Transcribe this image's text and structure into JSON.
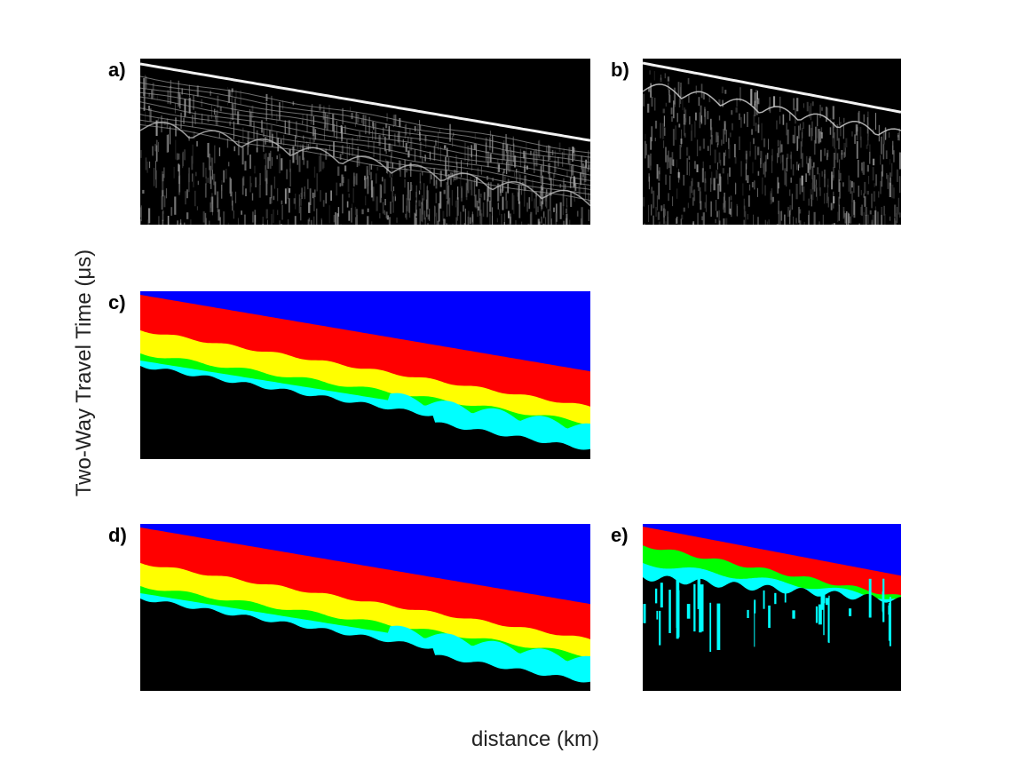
{
  "chart_data": {
    "type": "heatmap",
    "xlabel": "distance (km)",
    "ylabel": "Two-Way Travel Time (μs)",
    "panels": [
      {
        "label": "a)",
        "kind": "radargram",
        "description": "raw radar echo (grayscale)"
      },
      {
        "label": "b)",
        "kind": "radargram",
        "description": "raw radar echo (grayscale)"
      },
      {
        "label": "c)",
        "kind": "segmentation",
        "classes": [
          "blue",
          "red",
          "yellow",
          "green",
          "cyan",
          "black"
        ]
      },
      {
        "label": "d)",
        "kind": "segmentation",
        "classes": [
          "blue",
          "red",
          "yellow",
          "green",
          "cyan",
          "black"
        ]
      },
      {
        "label": "e)",
        "kind": "segmentation",
        "classes": [
          "blue",
          "red",
          "green",
          "cyan",
          "black"
        ]
      }
    ],
    "colors": {
      "blue": "#0000ff",
      "red": "#ff0000",
      "yellow": "#ffff00",
      "green": "#00ff00",
      "cyan": "#00ffff",
      "black": "#000000"
    }
  }
}
